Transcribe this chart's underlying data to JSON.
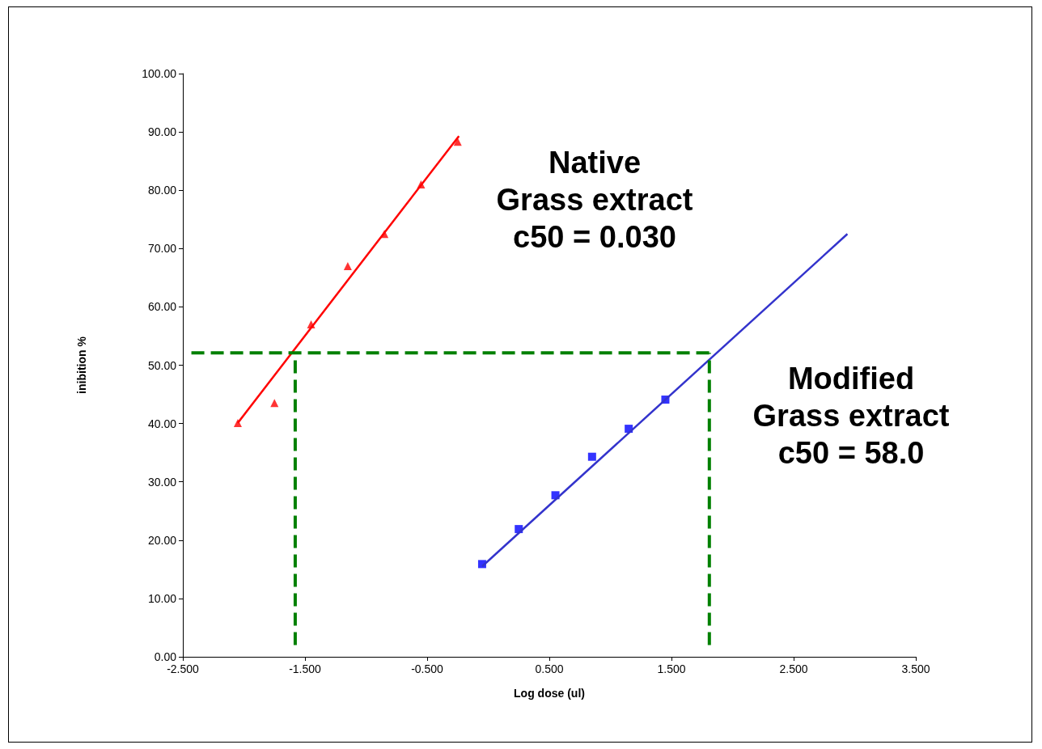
{
  "chart_data": {
    "type": "scatter",
    "xlabel": "Log dose (ul)",
    "ylabel": "inibition %",
    "xlim": [
      -2.5,
      3.5
    ],
    "xticks": [
      {
        "value": -2.5,
        "label": "-2.500"
      },
      {
        "value": -1.5,
        "label": "-1.500"
      },
      {
        "value": -0.5,
        "label": "-0.500"
      },
      {
        "value": 0.5,
        "label": "0.500"
      },
      {
        "value": 1.5,
        "label": "1.500"
      },
      {
        "value": 2.5,
        "label": "2.500"
      },
      {
        "value": 3.5,
        "label": "3.500"
      }
    ],
    "ylim": [
      0,
      100
    ],
    "yticks": [
      {
        "value": 0,
        "label": "0.00"
      },
      {
        "value": 10,
        "label": "10.00"
      },
      {
        "value": 20,
        "label": "20.00"
      },
      {
        "value": 30,
        "label": "30.00"
      },
      {
        "value": 40,
        "label": "40.00"
      },
      {
        "value": 50,
        "label": "50.00"
      },
      {
        "value": 60,
        "label": "60.00"
      },
      {
        "value": 70,
        "label": "70.00"
      },
      {
        "value": 80,
        "label": "80.00"
      },
      {
        "value": 90,
        "label": "90.00"
      },
      {
        "value": 100,
        "label": "100.00"
      }
    ],
    "grid": false,
    "series": [
      {
        "color": "#ff0000",
        "marker": "triangle",
        "x": [
          -2.05,
          -1.75,
          -1.45,
          -1.15,
          -0.85,
          -0.55,
          -0.25
        ],
        "values": [
          40.1,
          43.5,
          57.0,
          67.0,
          72.5,
          81.0,
          88.3
        ]
      },
      {
        "type": "line",
        "color": "#ff0000",
        "marker": "none",
        "line_style": "solid",
        "x": [
          -2.05,
          -0.24
        ],
        "values": [
          40.1,
          89.3
        ]
      },
      {
        "color": "#0000ff",
        "marker": "square",
        "x": [
          -0.05,
          0.25,
          0.55,
          0.85,
          1.15,
          1.45
        ],
        "values": [
          15.9,
          21.9,
          27.7,
          34.3,
          39.1,
          44.1
        ]
      },
      {
        "type": "line",
        "color": "#3333cc",
        "marker": "none",
        "line_style": "solid",
        "x": [
          -0.05,
          2.94
        ],
        "values": [
          15.5,
          72.5
        ]
      },
      {
        "type": "line",
        "color": "#008000",
        "marker": "none",
        "line_style": "dashed",
        "x": [
          -2.43,
          1.81
        ],
        "values": [
          52.1,
          52.1
        ]
      },
      {
        "type": "line",
        "color": "#008000",
        "marker": "none",
        "line_style": "dashed",
        "x": [
          -1.58,
          -1.58
        ],
        "values": [
          2,
          52.1
        ]
      },
      {
        "type": "line",
        "color": "#008000",
        "marker": "none",
        "line_style": "dashed",
        "x": [
          1.81,
          1.81
        ],
        "values": [
          2,
          52.1
        ]
      }
    ],
    "annotations": [
      "Native\nGrass extract\nc50 = 0.030",
      "Modified\nGrass extract\nc50 = 58.0"
    ]
  }
}
